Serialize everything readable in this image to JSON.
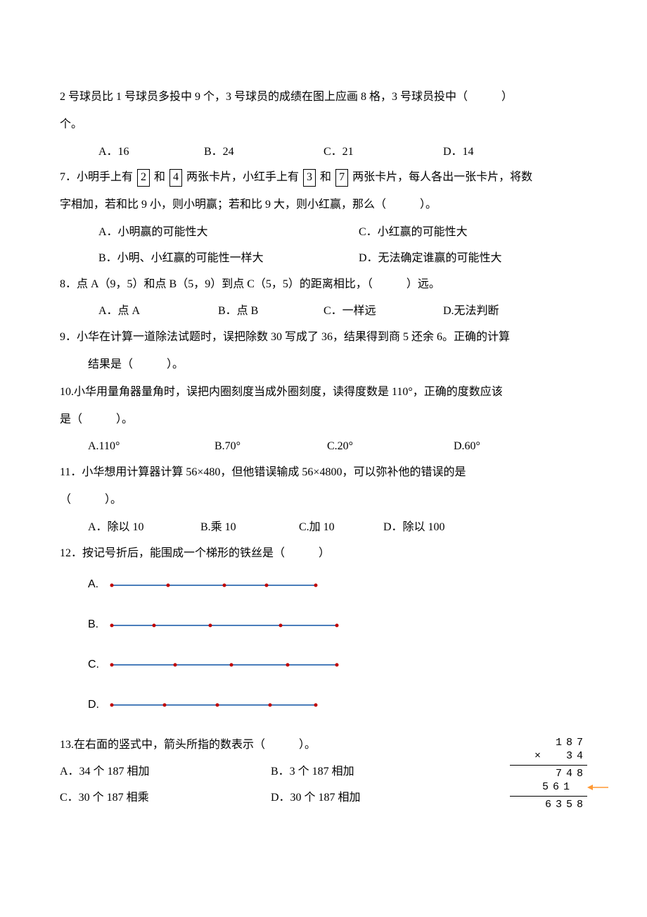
{
  "q6": {
    "stem1": "2 号球员比 1 号球员多投中 9 个，3 号球员的成绩在图上应画 8 格，3 号球员投中（　　　）",
    "stem2": "个。",
    "optA": "A．16",
    "optB": "B．24",
    "optC": "C．21",
    "optD": "D．14"
  },
  "q7": {
    "stem_pre": "7．小明手上有 ",
    "card1": "2",
    "mid1": " 和 ",
    "card2": "4",
    "mid2": " 两张卡片，小红手上有 ",
    "card3": "3",
    "mid3": " 和 ",
    "card4": "7",
    "stem_post": " 两张卡片，每人各出一张卡片，将数",
    "stem2": "字相加，若和比 9 小，则小明赢；若和比 9 大，则小红赢，那么（　　　）。",
    "optA": "A．小明赢的可能性大",
    "optC": "C．小红赢的可能性大",
    "optB": "B．小明、小红赢的可能性一样大",
    "optD": "D．无法确定谁赢的可能性大"
  },
  "q8": {
    "stem": "8．点 A（9，5）和点 B（5，9）到点 C（5，5）的距离相比，（　　　）远。",
    "optA": "A．点 A",
    "optB": "B．点 B",
    "optC": "C．一样远",
    "optD": "D.无法判断"
  },
  "q9": {
    "stem1": "9．小华在计算一道除法试题时，误把除数 30 写成了 36，结果得到商 5 还余 6。正确的计算",
    "stem2": "结果是（　　　）。"
  },
  "q10": {
    "stem1": "10.小华用量角器量角时，误把内圈刻度当成外圈刻度，读得度数是 110°，正确的度数应该",
    "stem2": "是（　　　）。",
    "optA": "A.110°",
    "optB": "B.70°",
    "optC": "C.20°",
    "optD": "D.60°"
  },
  "q11": {
    "stem1": "11．小华想用计算器计算 56×480，但他错误输成 56×4800，可以弥补他的错误的是",
    "stem2": "（　　　）。",
    "optA": "A．除以 10",
    "optB": "B.乘 10",
    "optC": "C.加 10",
    "optD": "D．除以 100"
  },
  "q12": {
    "stem": "12．按记号折后，能围成一个梯形的铁丝是（　　　）",
    "labelA": "A.",
    "labelB": "B.",
    "labelC": "C.",
    "labelD": "D.",
    "line_color": "#4a7ebb",
    "dot_color": "#c00000",
    "wires": {
      "A": {
        "len": 290,
        "dots": [
          0,
          80,
          160,
          220,
          290
        ]
      },
      "B": {
        "len": 320,
        "dots": [
          0,
          60,
          140,
          240,
          320
        ]
      },
      "C": {
        "len": 320,
        "dots": [
          0,
          90,
          170,
          250,
          320
        ]
      },
      "D": {
        "len": 290,
        "dots": [
          0,
          75,
          150,
          225,
          290
        ]
      }
    }
  },
  "q13": {
    "stem": "13.在右面的竖式中，箭头所指的数表示（　　　）。",
    "optA": "A．34 个 187 相加",
    "optB": "B．3 个 187 相加",
    "optC": "C．30 个 187 相乘",
    "optD": "D．30 个 187 相加",
    "mult": {
      "r1": "  187",
      "r2": "×  34",
      "r3": "  748",
      "r4": " 561 ",
      "r5": " 6358"
    },
    "arrow_color": "#ff9933"
  }
}
